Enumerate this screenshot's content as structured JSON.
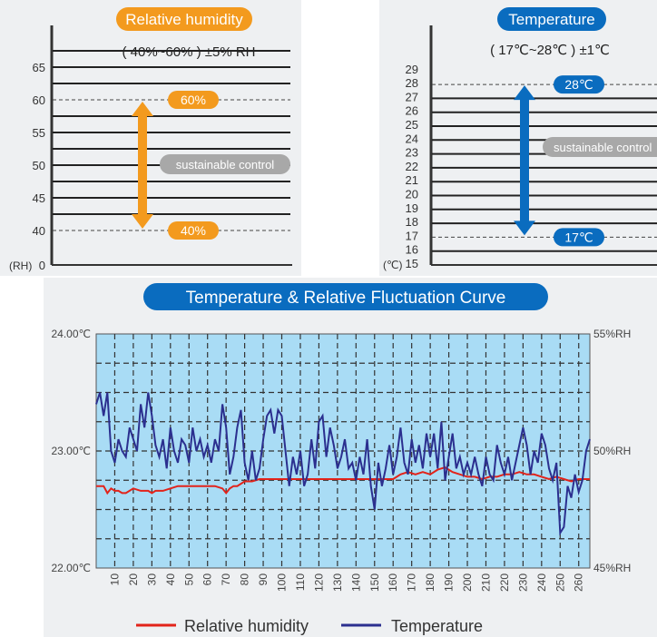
{
  "colors": {
    "orange": "#f39a1e",
    "blue": "#0a6cbf",
    "gray_pill": "#a8a8a8",
    "plot_bg": "#a9dcf5",
    "rh_line": "#e2231a",
    "temp_line": "#2b2f8f",
    "panel_bg": "#eef0f2"
  },
  "chart_data": [
    {
      "type": "bar",
      "title": "Relative humidity",
      "subtitle": "( 40%~60% ) ±5% RH",
      "ylabel": "(RH)",
      "ylim": [
        0,
        65
      ],
      "y_ticks": [
        "65",
        "60",
        "55",
        "50",
        "45",
        "40",
        "0"
      ],
      "range_low": 40,
      "range_high": 60,
      "range_low_label": "40%",
      "range_high_label": "60%",
      "annotation": "sustainable control"
    },
    {
      "type": "bar",
      "title": "Temperature",
      "subtitle": "( 17℃~28℃ ) ±1℃",
      "ylabel": "(℃)",
      "ylim": [
        15,
        29
      ],
      "y_ticks": [
        "29",
        "28",
        "27",
        "26",
        "25",
        "24",
        "23",
        "22",
        "21",
        "20",
        "19",
        "18",
        "17",
        "16",
        "15"
      ],
      "range_low": 17,
      "range_high": 28,
      "range_low_label": "17℃",
      "range_high_label": "28℃",
      "annotation": "sustainable control"
    },
    {
      "type": "line",
      "title": "Temperature & Relative Fluctuation Curve",
      "x_ticks": [
        "10",
        "20",
        "30",
        "40",
        "50",
        "60",
        "70",
        "80",
        "90",
        "100",
        "110",
        "120",
        "130",
        "140",
        "150",
        "160",
        "170",
        "180",
        "190",
        "200",
        "210",
        "220",
        "230",
        "240",
        "250",
        "260"
      ],
      "xlim": [
        0,
        266
      ],
      "y_left_ticks": [
        "24.00℃",
        "23.00℃",
        "22.00℃"
      ],
      "y_left_lim": [
        22,
        24
      ],
      "y_right_ticks": [
        "55%RH",
        "50%RH",
        "45%RH"
      ],
      "y_right_lim": [
        45,
        55
      ],
      "legend_position": "bottom",
      "grid": true,
      "series": [
        {
          "name": "Relative humidity",
          "axis": "right",
          "x": [
            0,
            4,
            6,
            8,
            10,
            12,
            14,
            16,
            20,
            24,
            28,
            30,
            32,
            36,
            40,
            44,
            48,
            52,
            56,
            60,
            64,
            68,
            70,
            72,
            74,
            76,
            78,
            80,
            84,
            88,
            92,
            96,
            100,
            104,
            108,
            112,
            116,
            120,
            124,
            128,
            132,
            136,
            140,
            144,
            148,
            150,
            152,
            156,
            160,
            164,
            168,
            172,
            176,
            180,
            184,
            188,
            192,
            196,
            200,
            204,
            208,
            212,
            216,
            220,
            224,
            228,
            232,
            236,
            240,
            244,
            248,
            252,
            256,
            260,
            264,
            266
          ],
          "y": [
            48.5,
            48.5,
            48.2,
            48.4,
            48.3,
            48.3,
            48.2,
            48.2,
            48.4,
            48.3,
            48.3,
            48.2,
            48.3,
            48.3,
            48.4,
            48.5,
            48.5,
            48.5,
            48.5,
            48.5,
            48.5,
            48.4,
            48.2,
            48.4,
            48.5,
            48.5,
            48.6,
            48.7,
            48.7,
            48.8,
            48.8,
            48.8,
            48.8,
            48.8,
            48.8,
            48.8,
            48.8,
            48.8,
            48.8,
            48.8,
            48.8,
            48.8,
            48.8,
            48.8,
            48.8,
            48.8,
            48.8,
            48.8,
            48.8,
            49.0,
            49.1,
            49.0,
            49.1,
            49.0,
            49.2,
            49.3,
            49.1,
            49.0,
            48.9,
            48.9,
            48.8,
            48.9,
            48.9,
            49.0,
            49.0,
            49.1,
            49.0,
            49.0,
            48.9,
            48.8,
            48.9,
            48.8,
            48.7,
            48.8,
            48.8,
            48.8
          ]
        },
        {
          "name": "Temperature",
          "axis": "left",
          "x": [
            0,
            2,
            4,
            6,
            8,
            10,
            12,
            14,
            16,
            18,
            20,
            22,
            24,
            26,
            28,
            30,
            32,
            34,
            36,
            38,
            40,
            42,
            44,
            46,
            48,
            50,
            52,
            54,
            56,
            58,
            60,
            62,
            64,
            66,
            68,
            70,
            72,
            74,
            76,
            78,
            80,
            82,
            84,
            86,
            88,
            90,
            92,
            94,
            96,
            98,
            100,
            102,
            104,
            106,
            108,
            110,
            112,
            114,
            116,
            118,
            120,
            122,
            124,
            126,
            128,
            130,
            132,
            134,
            136,
            138,
            140,
            142,
            144,
            146,
            148,
            150,
            152,
            154,
            156,
            158,
            160,
            162,
            164,
            166,
            168,
            170,
            172,
            174,
            176,
            178,
            180,
            182,
            184,
            186,
            188,
            190,
            192,
            194,
            196,
            198,
            200,
            202,
            204,
            206,
            208,
            210,
            212,
            214,
            216,
            218,
            220,
            222,
            224,
            226,
            228,
            230,
            232,
            234,
            236,
            238,
            240,
            242,
            244,
            246,
            248,
            250,
            252,
            254,
            256,
            258,
            260,
            262,
            264,
            266
          ],
          "y": [
            23.4,
            23.5,
            23.3,
            23.5,
            23.0,
            22.9,
            23.1,
            23.0,
            22.95,
            23.2,
            23.1,
            23.0,
            23.4,
            23.2,
            23.5,
            23.3,
            23.05,
            22.95,
            23.1,
            22.85,
            23.2,
            23.0,
            22.9,
            23.1,
            23.05,
            22.9,
            23.2,
            23.0,
            23.1,
            22.95,
            23.05,
            22.9,
            23.1,
            23.0,
            23.4,
            23.2,
            22.8,
            22.95,
            23.2,
            23.35,
            22.9,
            22.75,
            23.0,
            22.75,
            22.85,
            23.1,
            23.3,
            23.35,
            23.15,
            23.35,
            23.3,
            23.0,
            22.7,
            22.95,
            22.8,
            23.0,
            22.7,
            22.8,
            23.1,
            22.85,
            23.25,
            23.3,
            22.95,
            23.2,
            23.05,
            22.85,
            22.95,
            23.1,
            22.85,
            22.9,
            22.75,
            22.95,
            22.8,
            23.1,
            22.7,
            22.5,
            22.9,
            22.7,
            22.85,
            23.05,
            22.8,
            22.95,
            23.2,
            22.9,
            22.8,
            23.1,
            22.9,
            23.05,
            22.85,
            23.15,
            22.95,
            23.15,
            22.85,
            23.25,
            22.75,
            22.95,
            23.15,
            22.85,
            22.95,
            22.8,
            22.9,
            22.8,
            22.95,
            22.8,
            22.7,
            22.95,
            22.8,
            22.75,
            23.05,
            22.9,
            22.8,
            22.95,
            22.75,
            22.9,
            23.05,
            23.2,
            23.05,
            22.8,
            23.0,
            22.9,
            23.15,
            23.05,
            22.85,
            22.75,
            22.9,
            22.3,
            22.35,
            22.7,
            22.6,
            22.8,
            22.65,
            22.75,
            23.0,
            23.1
          ]
        }
      ],
      "legend": [
        "Relative humidity",
        "Temperature"
      ]
    }
  ]
}
